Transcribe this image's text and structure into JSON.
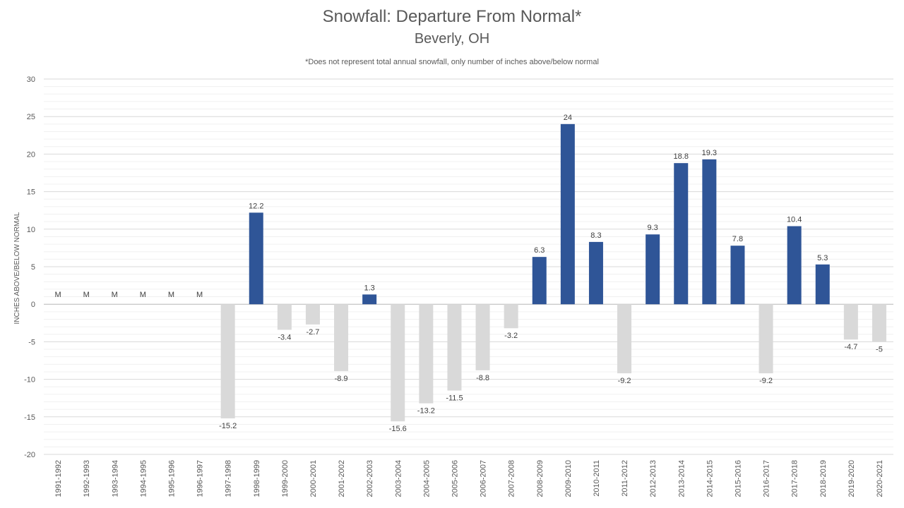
{
  "chart_data": {
    "type": "bar",
    "title": "Snowfall: Departure From Normal*",
    "subtitle": "Beverly, OH",
    "note": "*Does not represent  total annual snowfall, only number of inches above/below normal",
    "ylabel": "INCHES ABOVE/BELOW NORMAL",
    "xlabel": "",
    "ylim": [
      -20,
      30
    ],
    "yticks": [
      30,
      25,
      20,
      15,
      10,
      5,
      0,
      -5,
      -10,
      -15,
      -20
    ],
    "grid": true,
    "categories": [
      "1991-1992",
      "1992-1993",
      "1993-1994",
      "1994-1995",
      "1995-1996",
      "1996-1997",
      "1997-1998",
      "1998-1999",
      "1999-2000",
      "2000-2001",
      "2001-2002",
      "2002-2003",
      "2003-2004",
      "2004-2005",
      "2005-2006",
      "2006-2007",
      "2007-2008",
      "2008-2009",
      "2009-2010",
      "2010-2011",
      "2011-2012",
      "2012-2013",
      "2013-2014",
      "2014-2015",
      "2015-2016",
      "2016-2017",
      "2017-2018",
      "2018-2019",
      "2019-2020",
      "2020-2021"
    ],
    "values": [
      null,
      null,
      null,
      null,
      null,
      null,
      -15.2,
      12.2,
      -3.4,
      -2.7,
      -8.9,
      1.3,
      -15.6,
      -13.2,
      -11.5,
      -8.8,
      -3.2,
      6.3,
      24,
      8.3,
      -9.2,
      9.3,
      18.8,
      19.3,
      7.8,
      -9.2,
      10.4,
      5.3,
      -4.7,
      -5
    ],
    "labels": [
      "M",
      "M",
      "M",
      "M",
      "M",
      "M",
      "-15.2",
      "12.2",
      "-3.4",
      "-2.7",
      "-8.9",
      "1.3",
      "-15.6",
      "-13.2",
      "-11.5",
      "-8.8",
      "-3.2",
      "6.3",
      "24",
      "8.3",
      "-9.2",
      "9.3",
      "18.8",
      "19.3",
      "7.8",
      "-9.2",
      "10.4",
      "5.3",
      "-4.7",
      "-5"
    ],
    "colors": {
      "positive": "#2F5597",
      "negative": "#D9D9D9",
      "grid": "#D9D9D9",
      "text": "#595959"
    }
  }
}
